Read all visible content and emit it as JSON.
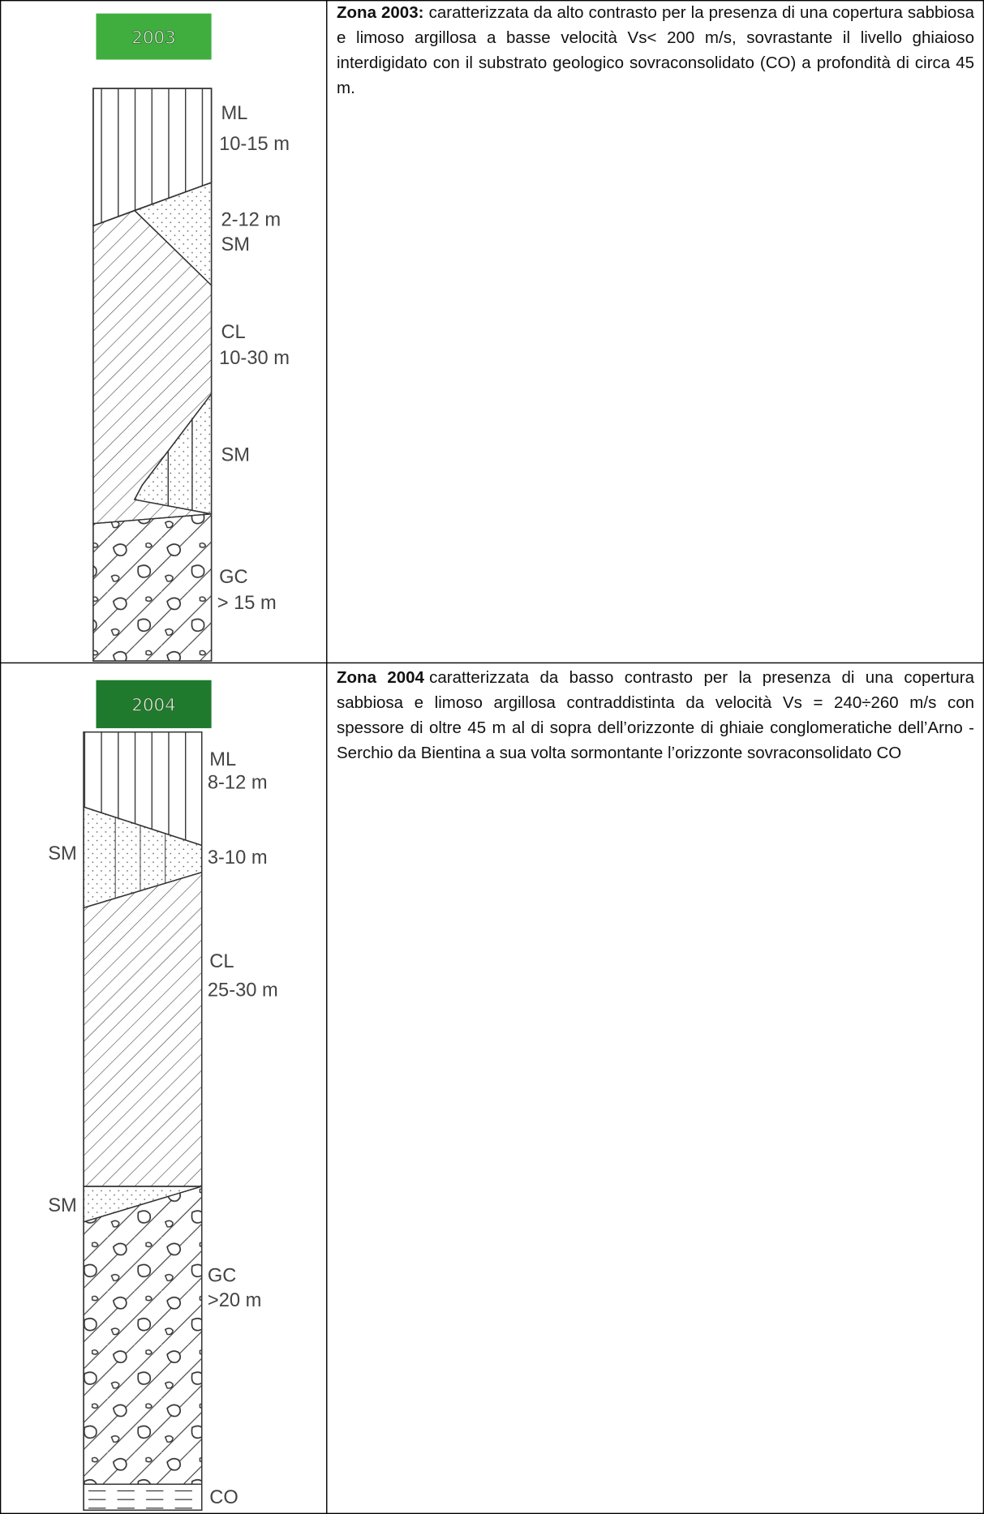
{
  "rows": [
    {
      "badge": "2003",
      "title": "Zona 2003:",
      "text": "caratterizzata da alto contrasto per la presenza di una copertura sabbiosa e limoso argillosa a basse velocità Vs< 200 m/s, sovrastante il livello ghiaioso interdigidato con il substrato geologico sovraconsolidato (CO) a profondità di circa 45 m.",
      "column_labels": [
        "ML",
        "10-15 m",
        "2-12 m",
        "SM",
        "CL",
        "10-30 m",
        "SM",
        "GC",
        "> 15 m"
      ]
    },
    {
      "badge": "2004",
      "title": "Zona 2004",
      "text": "caratterizzata da basso contrasto per la presenza di una copertura sabbiosa e limoso argillosa contraddistinta da velocità Vs = 240÷260 m/s con spessore di oltre 45 m al di sopra dell’orizzonte di ghiaie conglomeratiche dell’Arno -Serchio da Bientina a sua volta sormontante l’orizzonte sovraconsolidato CO",
      "column_labels": [
        "ML",
        "8-12 m",
        "SM",
        "3-10 m",
        "CL",
        "25-30 m",
        "SM",
        "GC",
        ">20 m",
        "CO"
      ]
    }
  ]
}
